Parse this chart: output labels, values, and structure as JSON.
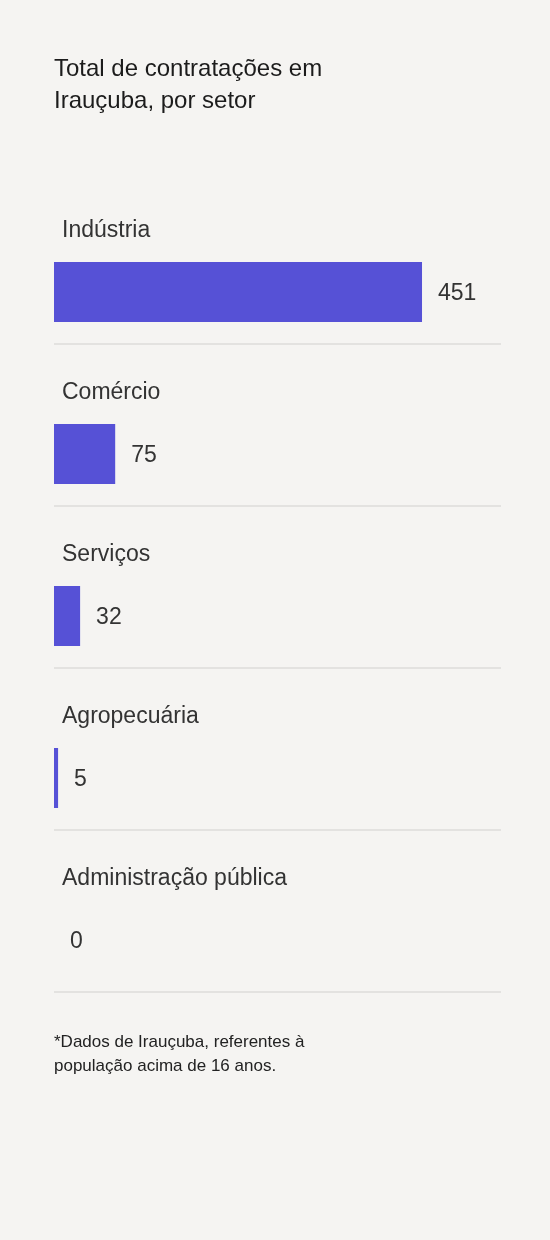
{
  "chart_data": {
    "type": "bar",
    "orientation": "horizontal",
    "title": "Total de contratações em Irauçuba, por setor",
    "categories": [
      "Indústria",
      "Comércio",
      "Serviços",
      "Agropecuária",
      "Administração pública"
    ],
    "values": [
      451,
      75,
      32,
      5,
      0
    ],
    "color": "#5651d6",
    "data_labels": true,
    "grid": "y",
    "annotations": [
      "*Dados de Irauçuba, referentes à população acima de 16 anos."
    ]
  }
}
